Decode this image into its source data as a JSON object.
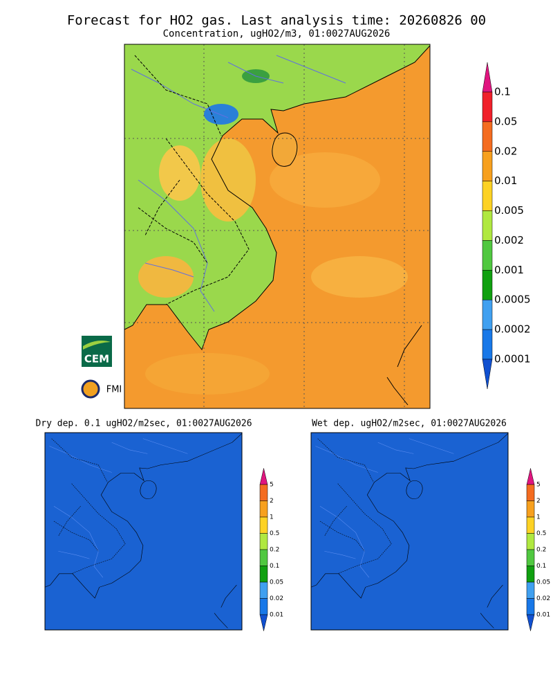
{
  "title": "Forecast for HO2 gas. Last analysis time: 20260826 00",
  "subtitle": "Concentration, ugHO2/m3, 01:0027AUG2026",
  "colorbar": {
    "labels": [
      "0.1",
      "0.05",
      "0.02",
      "0.01",
      "0.005",
      "0.002",
      "0.001",
      "0.0005",
      "0.0002",
      "0.0001"
    ]
  },
  "panels": [
    {
      "title": "Dry dep. 0.1 ugHO2/m2sec, 01:0027AUG2026",
      "colorbar": {
        "labels": [
          "5",
          "2",
          "1",
          "0.5",
          "0.2",
          "0.1",
          "0.05",
          "0.02",
          "0.01"
        ]
      }
    },
    {
      "title": "Wet dep. ugHO2/m2sec, 01:0027AUG2026",
      "colorbar": {
        "labels": [
          "5",
          "2",
          "1",
          "0.5",
          "0.2",
          "0.1",
          "0.05",
          "0.02",
          "0.01"
        ]
      }
    }
  ],
  "logos": {
    "cem": "CEM",
    "fmi": "FMI"
  }
}
